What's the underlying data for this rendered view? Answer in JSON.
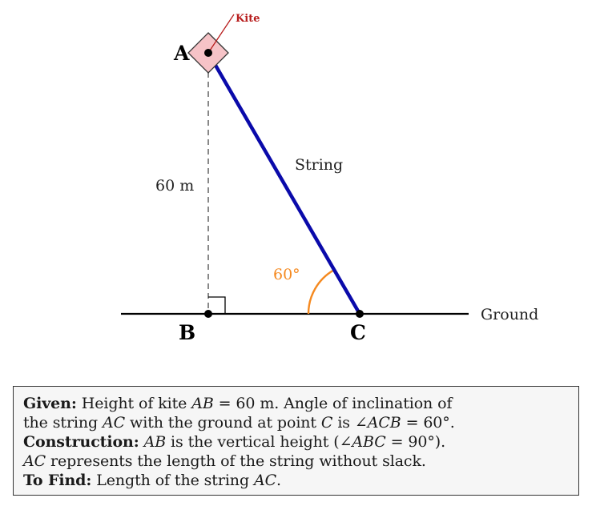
{
  "diagram": {
    "points": {
      "A": "A",
      "B": "B",
      "C": "C"
    },
    "kite_label": "Kite",
    "string_label": "String",
    "height_label": "60 m",
    "angle_label": "60°",
    "ground_label": "Ground",
    "colors": {
      "string": "#0a0aaa",
      "kite_fill": "#f6c3c7",
      "kite_label": "#b71c1c",
      "angle": "#f5891f",
      "dashed": "#888888"
    }
  },
  "info": {
    "given_heading": "Given:",
    "given_text_1": " Height of kite ",
    "given_ab": "AB",
    "given_text_2": " = 60 m.  Angle of inclination of",
    "given_text_3": "the string ",
    "given_ac": "AC",
    "given_text_4": " with the ground at point ",
    "given_c": "C",
    "given_text_5": " is ∠",
    "given_acb": "ACB",
    "given_text_6": " = 60°.",
    "construction_heading": "Construction:",
    "construction_text_1": " ",
    "construction_ab": "AB",
    "construction_text_2": " is the vertical height (∠",
    "construction_abc": "ABC",
    "construction_text_3": " = 90°).",
    "construction_ac": "AC",
    "construction_text_4": " represents the length of the string without slack.",
    "tofind_heading": "To Find:",
    "tofind_text": " Length of the string ",
    "tofind_ac": "AC",
    "tofind_end": "."
  }
}
